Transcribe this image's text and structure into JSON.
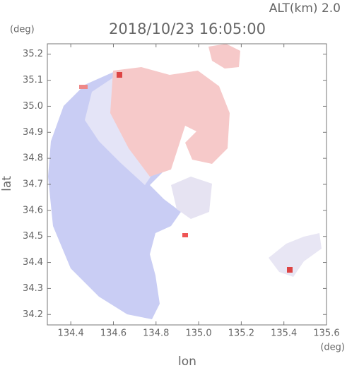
{
  "chart_data": {
    "type": "radar",
    "title": "2018/10/23 16:05:00",
    "annotation": "ALT(km) 2.0",
    "xlabel": "lon",
    "ylabel": "lat",
    "x_unit": "(deg)",
    "y_unit": "(deg)",
    "xlim": [
      134.29,
      135.6
    ],
    "ylim": [
      34.16,
      35.24
    ],
    "xticks": [
      134.4,
      134.6,
      134.8,
      {
        "value": 135,
        "label": "135.0"
      },
      135.2,
      135.4,
      135.6
    ],
    "yticks": [
      34.2,
      34.3,
      34.4,
      34.5,
      34.6,
      34.7,
      34.8,
      34.9,
      {
        "value": 35,
        "label": "35.0"
      },
      35.1,
      35.2
    ]
  }
}
